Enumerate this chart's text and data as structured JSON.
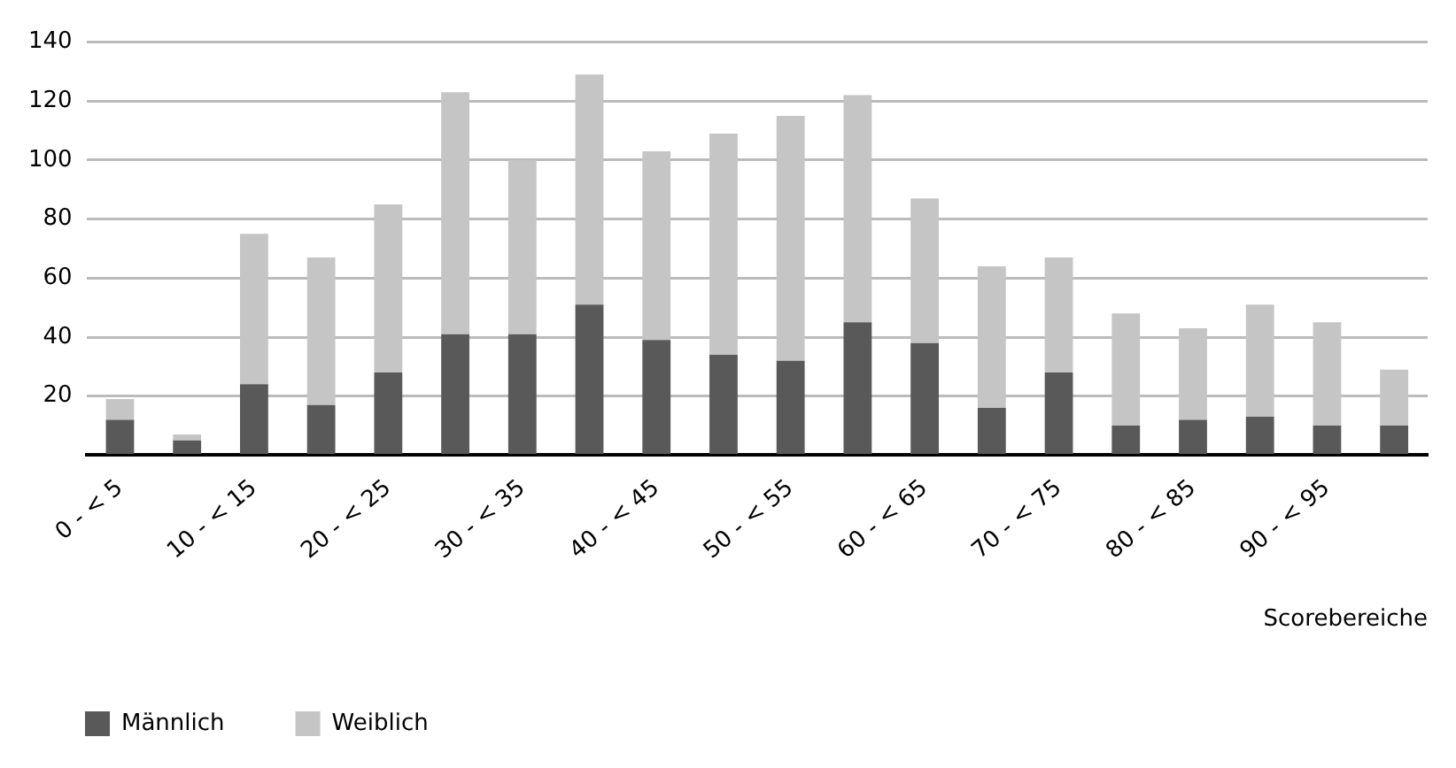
{
  "chart_data": {
    "type": "bar",
    "stacked": true,
    "xlabel": "Scorebereiche",
    "categories": [
      "0 - < 5",
      null,
      "10 - < 15",
      null,
      "20 - < 25",
      null,
      "30 - < 35",
      null,
      "40 - < 45",
      null,
      "50 - < 55",
      null,
      "60 - < 65",
      null,
      "70 - < 75",
      null,
      "80 - < 85",
      null,
      "90 - < 95",
      null
    ],
    "series": [
      {
        "name": "Männlich",
        "color": "#595959",
        "values": [
          12,
          5,
          24,
          17,
          28,
          41,
          41,
          51,
          39,
          34,
          32,
          45,
          38,
          16,
          28,
          10,
          12,
          13,
          10,
          10
        ]
      },
      {
        "name": "Weiblich",
        "color": "#c4c5c4",
        "values": [
          7,
          2,
          51,
          50,
          57,
          82,
          59,
          78,
          64,
          75,
          83,
          77,
          49,
          48,
          39,
          38,
          31,
          38,
          35,
          19
        ]
      }
    ],
    "ylim": [
      0,
      140
    ],
    "yticks": [
      {
        "value": 0,
        "label": null
      },
      20,
      40,
      60,
      80,
      100,
      120,
      140
    ],
    "grid": "y",
    "legend": "bottom left"
  }
}
